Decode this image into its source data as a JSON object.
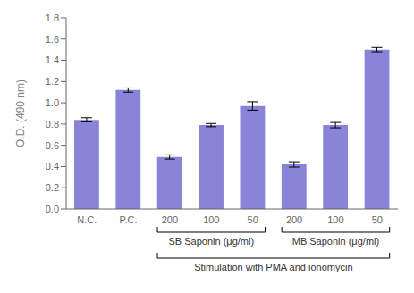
{
  "chart_data": {
    "type": "bar",
    "categories": [
      "N.C.",
      "P.C.",
      "200",
      "100",
      "50",
      "200",
      "100",
      "50"
    ],
    "values": [
      0.84,
      1.12,
      0.49,
      0.79,
      0.97,
      0.42,
      0.79,
      1.5
    ],
    "errors": [
      0.02,
      0.02,
      0.02,
      0.015,
      0.04,
      0.025,
      0.025,
      0.02
    ],
    "ylim": [
      0.0,
      1.8
    ],
    "yticks": [
      {
        "value": 0.0,
        "label": "0.0"
      },
      0.2,
      0.4,
      0.6,
      0.8,
      {
        "value": 1.0,
        "label": "1.0"
      },
      1.2,
      1.4,
      1.6,
      1.8
    ],
    "ylabel": "O.D. (490 nm)",
    "annotations": [
      {
        "text": "SB Saponin (μg/ml)",
        "start": 2,
        "end": 4
      },
      {
        "text": "MB Saponin (μg/ml)",
        "start": 5,
        "end": 7
      },
      {
        "text": "Stimulation with PMA and ionomycin",
        "start": 2,
        "end": 7
      }
    ]
  }
}
